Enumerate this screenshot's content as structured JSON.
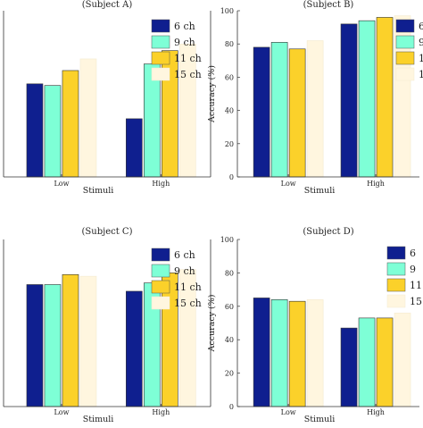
{
  "chart_data": [
    {
      "type": "bar",
      "title": "(Subject A)",
      "xlabel": "Stimuli",
      "ylabel": "",
      "ylim": [
        0,
        100
      ],
      "yticks": [],
      "categories": [
        "Low",
        "High"
      ],
      "series": [
        {
          "name": "6 ch",
          "values": [
            56,
            35
          ]
        },
        {
          "name": "9 ch",
          "values": [
            55,
            68
          ]
        },
        {
          "name": "11 ch",
          "values": [
            64,
            76
          ]
        },
        {
          "name": "15 ch",
          "values": [
            71,
            80
          ]
        }
      ],
      "legend": "top-right"
    },
    {
      "type": "bar",
      "title": "(Subject B)",
      "xlabel": "Stimuli",
      "ylabel": "Accuracy (%)",
      "ylim": [
        0,
        100
      ],
      "yticks": [
        "0",
        "20",
        "40",
        "60",
        "80",
        "100"
      ],
      "categories": [
        "Low",
        "High"
      ],
      "series": [
        {
          "name": "6",
          "values": [
            78,
            92
          ]
        },
        {
          "name": "9",
          "values": [
            81,
            94
          ]
        },
        {
          "name": "1",
          "values": [
            77,
            96
          ]
        },
        {
          "name": "1",
          "values": [
            82,
            97
          ]
        }
      ],
      "legend": "top-right"
    },
    {
      "type": "bar",
      "title": "(Subject C)",
      "xlabel": "Stimuli",
      "ylabel": "",
      "ylim": [
        0,
        100
      ],
      "yticks": [],
      "categories": [
        "Low",
        "High"
      ],
      "series": [
        {
          "name": "6 ch",
          "values": [
            73,
            69
          ]
        },
        {
          "name": "9 ch",
          "values": [
            73,
            74
          ]
        },
        {
          "name": "11 ch",
          "values": [
            79,
            80
          ]
        },
        {
          "name": "15 ch",
          "values": [
            78,
            82
          ]
        }
      ],
      "legend": "top-right"
    },
    {
      "type": "bar",
      "title": "(Subject D)",
      "xlabel": "Stimuli",
      "ylabel": "Accuracy (%)",
      "ylim": [
        0,
        100
      ],
      "yticks": [
        "0",
        "20",
        "40",
        "60",
        "80",
        "100"
      ],
      "categories": [
        "Low",
        "High"
      ],
      "series": [
        {
          "name": "6",
          "values": [
            65,
            47
          ]
        },
        {
          "name": "9",
          "values": [
            64,
            53
          ]
        },
        {
          "name": "11",
          "values": [
            63,
            53
          ]
        },
        {
          "name": "15",
          "values": [
            64,
            56
          ]
        }
      ],
      "legend": "top-right"
    }
  ],
  "colors": [
    "#0f1f8f",
    "#7effd6",
    "#fbd12a",
    "#fff6df"
  ]
}
